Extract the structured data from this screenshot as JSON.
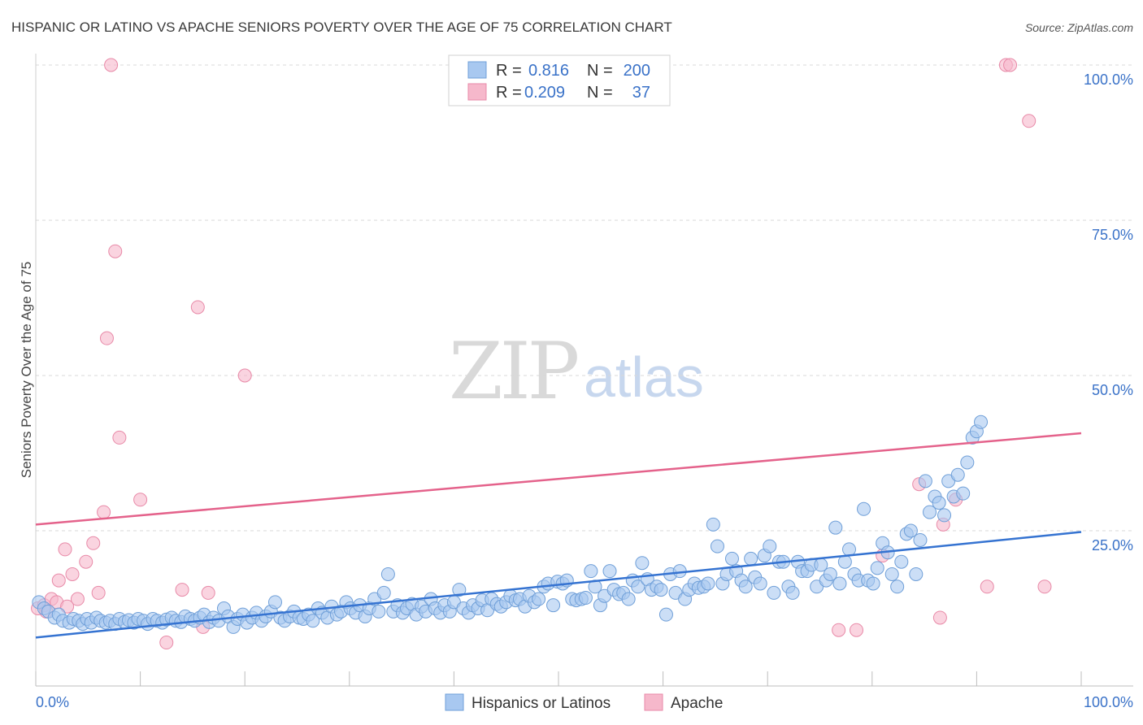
{
  "title": "HISPANIC OR LATINO VS APACHE SENIORS POVERTY OVER THE AGE OF 75 CORRELATION CHART",
  "source": "Source: ZipAtlas.com",
  "watermark": {
    "zip": "ZIP",
    "atlas": "atlas"
  },
  "colors": {
    "blue_fill": "#a8c8f0",
    "blue_stroke": "#6f9fd8",
    "blue_line": "#3573d1",
    "pink_fill": "#f6b8cb",
    "pink_stroke": "#e88aa8",
    "pink_line": "#e4628b",
    "grid": "#d8d8d8",
    "axis_text": "#3a72c8"
  },
  "legend": {
    "rows": [
      {
        "r_label": "R =",
        "r_value": "0.816",
        "n_label": "N =",
        "n_value": "200",
        "color": "blue"
      },
      {
        "r_label": "R =",
        "r_value": "0.209",
        "n_label": "N =",
        "n_value": "37",
        "color": "pink"
      }
    ]
  },
  "bottom_legend": [
    "Hispanics or Latinos",
    "Apache"
  ],
  "chart_data": {
    "type": "scatter",
    "title": "HISPANIC OR LATINO VS APACHE SENIORS POVERTY OVER THE AGE OF 75 CORRELATION CHART",
    "xlabel": "",
    "ylabel": "Seniors Poverty Over the Age of 75",
    "xlim": [
      0,
      100
    ],
    "ylim": [
      0,
      100
    ],
    "x_tick_labels": [
      "0.0%",
      "100.0%"
    ],
    "y_ticks": [
      25,
      50,
      75,
      100
    ],
    "y_tick_labels": [
      "25.0%",
      "50.0%",
      "75.0%",
      "100.0%"
    ],
    "grid": true,
    "series": [
      {
        "name": "Hispanics or Latinos",
        "color": "blue",
        "R": 0.816,
        "N": 200,
        "trend": {
          "x": [
            0,
            100
          ],
          "y": [
            7.8,
            24.8
          ]
        },
        "points": [
          [
            0.3,
            13.5
          ],
          [
            0.8,
            12.5
          ],
          [
            1.2,
            12
          ],
          [
            1.8,
            11
          ],
          [
            2.2,
            11.5
          ],
          [
            2.6,
            10.5
          ],
          [
            3.2,
            10.2
          ],
          [
            3.6,
            10.8
          ],
          [
            4.1,
            10.5
          ],
          [
            4.5,
            10
          ],
          [
            4.9,
            10.8
          ],
          [
            5.3,
            10.2
          ],
          [
            5.8,
            11
          ],
          [
            6.2,
            10.5
          ],
          [
            6.7,
            10.2
          ],
          [
            7.1,
            10.5
          ],
          [
            7.6,
            10
          ],
          [
            8.0,
            10.8
          ],
          [
            8.5,
            10.3
          ],
          [
            8.9,
            10.6
          ],
          [
            9.4,
            10.2
          ],
          [
            9.8,
            10.8
          ],
          [
            10.3,
            10.5
          ],
          [
            10.7,
            10
          ],
          [
            11.2,
            10.8
          ],
          [
            11.6,
            10.5
          ],
          [
            12.1,
            10.2
          ],
          [
            12.5,
            10.7
          ],
          [
            13.0,
            11
          ],
          [
            13.4,
            10.5
          ],
          [
            13.9,
            10.3
          ],
          [
            14.3,
            11.2
          ],
          [
            14.8,
            10.8
          ],
          [
            15.2,
            10.5
          ],
          [
            15.7,
            11
          ],
          [
            16.1,
            11.5
          ],
          [
            16.6,
            10.3
          ],
          [
            17.0,
            11
          ],
          [
            17.5,
            10.5
          ],
          [
            18.0,
            12.5
          ],
          [
            18.4,
            11.2
          ],
          [
            18.9,
            9.5
          ],
          [
            19.3,
            10.8
          ],
          [
            19.8,
            11.5
          ],
          [
            20.2,
            10.2
          ],
          [
            20.7,
            11
          ],
          [
            21.1,
            11.8
          ],
          [
            21.6,
            10.5
          ],
          [
            22.0,
            11.2
          ],
          [
            22.5,
            12
          ],
          [
            22.9,
            13.5
          ],
          [
            23.4,
            11
          ],
          [
            23.8,
            10.5
          ],
          [
            24.3,
            11.2
          ],
          [
            24.7,
            12
          ],
          [
            25.2,
            11
          ],
          [
            25.6,
            10.8
          ],
          [
            26.1,
            11.5
          ],
          [
            26.5,
            10.5
          ],
          [
            27.0,
            12.5
          ],
          [
            27.4,
            11.8
          ],
          [
            27.9,
            11
          ],
          [
            28.3,
            12.8
          ],
          [
            28.8,
            11.5
          ],
          [
            29.2,
            12
          ],
          [
            29.7,
            13.5
          ],
          [
            30.1,
            12.5
          ],
          [
            30.6,
            11.8
          ],
          [
            31.0,
            13
          ],
          [
            31.5,
            11.2
          ],
          [
            31.9,
            12.5
          ],
          [
            32.4,
            14
          ],
          [
            32.8,
            12
          ],
          [
            33.3,
            15
          ],
          [
            33.7,
            18
          ],
          [
            34.2,
            12
          ],
          [
            34.6,
            13
          ],
          [
            35.1,
            11.8
          ],
          [
            35.5,
            12.5
          ],
          [
            36.0,
            13.2
          ],
          [
            36.4,
            11.5
          ],
          [
            36.9,
            12.8
          ],
          [
            37.3,
            12
          ],
          [
            37.8,
            14
          ],
          [
            38.2,
            12.5
          ],
          [
            38.7,
            11.8
          ],
          [
            39.1,
            13
          ],
          [
            39.6,
            12
          ],
          [
            40.0,
            13.5
          ],
          [
            40.5,
            15.5
          ],
          [
            40.9,
            12.5
          ],
          [
            41.4,
            11.8
          ],
          [
            41.8,
            13
          ],
          [
            42.3,
            12.5
          ],
          [
            42.7,
            13.8
          ],
          [
            43.2,
            12.2
          ],
          [
            43.6,
            14
          ],
          [
            44.1,
            13.2
          ],
          [
            44.5,
            12.8
          ],
          [
            45.0,
            13.5
          ],
          [
            45.4,
            14.5
          ],
          [
            45.9,
            13.8
          ],
          [
            46.3,
            14
          ],
          [
            46.8,
            12.8
          ],
          [
            47.2,
            14.5
          ],
          [
            47.7,
            13.5
          ],
          [
            48.1,
            14
          ],
          [
            48.6,
            16
          ],
          [
            49.0,
            16.5
          ],
          [
            49.5,
            13
          ],
          [
            49.9,
            16.8
          ],
          [
            50.4,
            16.5
          ],
          [
            50.8,
            17
          ],
          [
            51.3,
            14
          ],
          [
            51.7,
            13.8
          ],
          [
            52.2,
            14
          ],
          [
            52.6,
            14.2
          ],
          [
            53.1,
            18.5
          ],
          [
            53.5,
            16
          ],
          [
            54.0,
            13
          ],
          [
            54.4,
            14.5
          ],
          [
            54.9,
            18.5
          ],
          [
            55.3,
            15.5
          ],
          [
            55.8,
            14.8
          ],
          [
            56.2,
            15
          ],
          [
            56.7,
            14
          ],
          [
            57.1,
            17
          ],
          [
            57.6,
            16
          ],
          [
            58.0,
            19.8
          ],
          [
            58.5,
            17.2
          ],
          [
            58.9,
            15.5
          ],
          [
            59.4,
            16
          ],
          [
            59.8,
            15.5
          ],
          [
            60.3,
            11.5
          ],
          [
            60.7,
            18
          ],
          [
            61.2,
            15
          ],
          [
            61.6,
            18.5
          ],
          [
            62.1,
            14
          ],
          [
            62.5,
            15.5
          ],
          [
            63.0,
            16.5
          ],
          [
            63.4,
            15.8
          ],
          [
            63.9,
            16
          ],
          [
            64.3,
            16.5
          ],
          [
            64.8,
            26
          ],
          [
            65.2,
            22.5
          ],
          [
            65.7,
            16.5
          ],
          [
            66.1,
            18
          ],
          [
            66.6,
            20.5
          ],
          [
            67.0,
            18.5
          ],
          [
            67.5,
            17
          ],
          [
            67.9,
            16
          ],
          [
            68.4,
            20.5
          ],
          [
            68.8,
            17.5
          ],
          [
            69.3,
            16.5
          ],
          [
            69.7,
            21
          ],
          [
            70.2,
            22.5
          ],
          [
            70.6,
            15
          ],
          [
            71.1,
            20
          ],
          [
            71.5,
            20
          ],
          [
            72.0,
            16
          ],
          [
            72.4,
            15
          ],
          [
            72.9,
            20
          ],
          [
            73.3,
            18.5
          ],
          [
            73.8,
            18.5
          ],
          [
            74.2,
            19.5
          ],
          [
            74.7,
            16
          ],
          [
            75.1,
            19.5
          ],
          [
            75.6,
            17
          ],
          [
            76.0,
            18
          ],
          [
            76.5,
            25.5
          ],
          [
            76.9,
            16.5
          ],
          [
            77.4,
            20
          ],
          [
            77.8,
            22
          ],
          [
            78.3,
            18
          ],
          [
            78.7,
            17
          ],
          [
            79.2,
            28.5
          ],
          [
            79.6,
            17
          ],
          [
            80.1,
            16.5
          ],
          [
            80.5,
            19
          ],
          [
            81.0,
            23
          ],
          [
            81.5,
            21.5
          ],
          [
            81.9,
            18
          ],
          [
            82.4,
            16
          ],
          [
            82.8,
            20
          ],
          [
            83.3,
            24.5
          ],
          [
            83.7,
            25
          ],
          [
            84.2,
            18
          ],
          [
            84.6,
            23.5
          ],
          [
            85.1,
            33
          ],
          [
            85.5,
            28
          ],
          [
            86.0,
            30.5
          ],
          [
            86.4,
            29.5
          ],
          [
            86.9,
            27.5
          ],
          [
            87.3,
            33
          ],
          [
            87.8,
            30.5
          ],
          [
            88.2,
            34
          ],
          [
            88.7,
            31
          ],
          [
            89.1,
            36
          ],
          [
            89.6,
            40
          ],
          [
            90.0,
            41
          ],
          [
            90.4,
            42.5
          ]
        ]
      },
      {
        "name": "Apache",
        "color": "pink",
        "R": 0.209,
        "N": 37,
        "trend": {
          "x": [
            0,
            100
          ],
          "y": [
            26,
            40.7
          ]
        },
        "points": [
          [
            0.2,
            12.5
          ],
          [
            0.8,
            13
          ],
          [
            1.5,
            14
          ],
          [
            2.2,
            17
          ],
          [
            2.8,
            22
          ],
          [
            3.5,
            18
          ],
          [
            4.0,
            14
          ],
          [
            4.8,
            20
          ],
          [
            5.5,
            23
          ],
          [
            6.0,
            15
          ],
          [
            6.5,
            28
          ],
          [
            6.8,
            56
          ],
          [
            7.2,
            100
          ],
          [
            7.6,
            70
          ],
          [
            8.0,
            40
          ],
          [
            10.0,
            30
          ],
          [
            12.5,
            7
          ],
          [
            14.0,
            15.5
          ],
          [
            15.5,
            61
          ],
          [
            16.0,
            9.5
          ],
          [
            16.5,
            15
          ],
          [
            20.0,
            50
          ],
          [
            76.8,
            9
          ],
          [
            78.5,
            9
          ],
          [
            81.0,
            21
          ],
          [
            84.5,
            32.5
          ],
          [
            86.5,
            11
          ],
          [
            86.8,
            26
          ],
          [
            88.0,
            30
          ],
          [
            91.0,
            16
          ],
          [
            92.8,
            100
          ],
          [
            93.2,
            100
          ],
          [
            95.0,
            91
          ],
          [
            96.5,
            16
          ],
          [
            1.0,
            12
          ],
          [
            2.0,
            13.5
          ],
          [
            3.0,
            12.8
          ]
        ]
      }
    ]
  }
}
